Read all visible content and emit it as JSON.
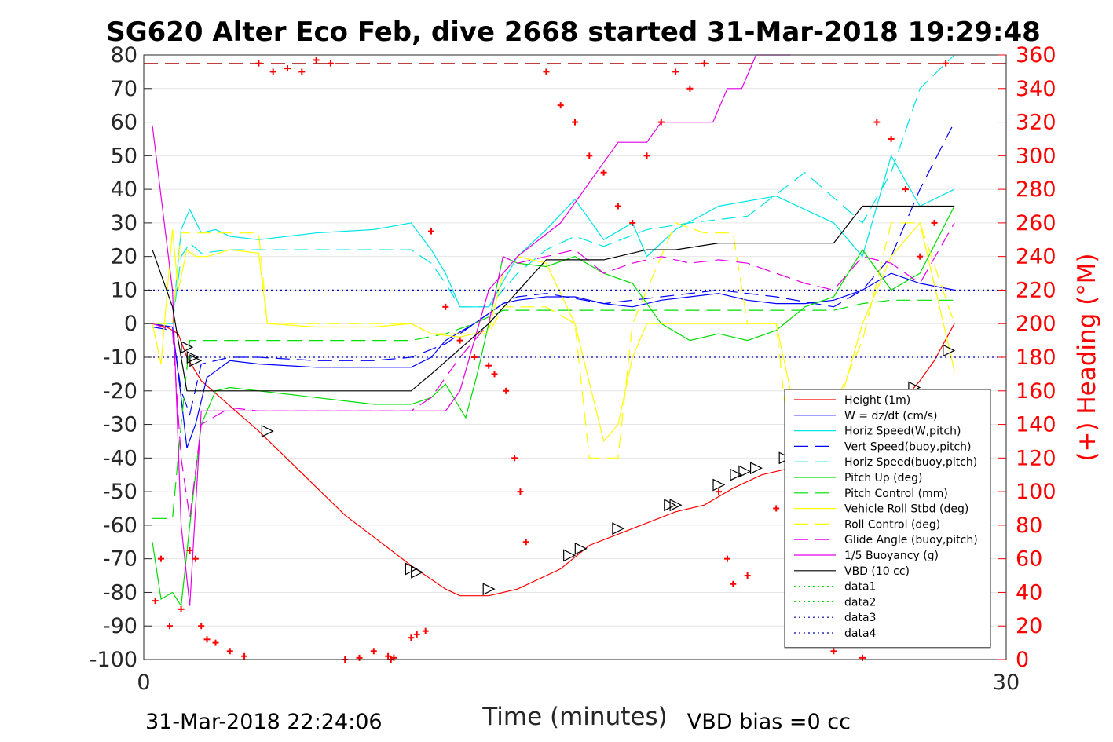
{
  "chart_data": {
    "type": "line",
    "title": "SG620 Alter Eco Feb, dive 2668 started 31-Mar-2018 19:29:48",
    "xlabel": "Time (minutes)",
    "ylabel": "",
    "ylabel_right": "(+) Heading (°M)",
    "xlim": [
      0,
      30
    ],
    "ylim": [
      -100,
      80
    ],
    "ylim_right": [
      0,
      360
    ],
    "xticks": [
      0,
      30
    ],
    "yticks": [
      80,
      70,
      60,
      50,
      40,
      30,
      20,
      10,
      0,
      -10,
      -20,
      -30,
      -40,
      -50,
      -60,
      -70,
      -80,
      -90,
      -100
    ],
    "yticks_right": [
      360,
      340,
      320,
      300,
      280,
      260,
      240,
      220,
      200,
      180,
      160,
      140,
      120,
      100,
      80,
      60,
      40,
      20,
      0
    ],
    "grid": true,
    "legend_position": "bottom-right",
    "footer_left": "31-Mar-2018 22:24:06",
    "footer_right": "VBD bias =0 cc",
    "series": [
      {
        "name": "Height (1m)",
        "color": "#ff0000",
        "style": "solid",
        "x": [
          0.3,
          0.8,
          1.2,
          1.5,
          2.0,
          4.0,
          7.0,
          9.3,
          10.5,
          11.0,
          12.0,
          13.0,
          14.5,
          15.5,
          17.0,
          18.5,
          19.5,
          20.5,
          21.5,
          22.5,
          23.5,
          24.5,
          25.5,
          26.5,
          27.0,
          27.5,
          28.2
        ],
        "y": [
          0,
          -1,
          -3,
          -10,
          -17,
          -32,
          -57,
          -72,
          -79,
          -81,
          -81,
          -79,
          -73,
          -66,
          -61,
          -56,
          -54,
          -49,
          -45,
          -43,
          -40,
          -36,
          -32,
          -22,
          -17,
          -11,
          0
        ]
      },
      {
        "name": "W = dz/dt (cm/s)",
        "color": "#0000ff",
        "style": "solid",
        "x": [
          0.3,
          1.0,
          1.3,
          1.5,
          1.8,
          2.2,
          3.0,
          4.0,
          6.0,
          8.0,
          9.3,
          10.0,
          10.5,
          11.5,
          12.0,
          12.5,
          13.0,
          14.0,
          15.0,
          16.0,
          17.0,
          18.0,
          19.0,
          20.0,
          21.0,
          22.0,
          23.0,
          24.0,
          25.0,
          26.0,
          27.0,
          28.2
        ],
        "y": [
          0,
          -1,
          -22,
          -37,
          -30,
          -16,
          -11,
          -12,
          -13,
          -13,
          -13,
          -10,
          -5,
          0,
          3,
          6,
          7,
          8,
          8,
          6,
          5,
          7,
          8,
          9,
          7,
          6,
          6,
          7,
          10,
          15,
          12,
          10
        ]
      },
      {
        "name": "Horiz Speed(W,pitch)",
        "color": "#00e5e5",
        "style": "solid",
        "x": [
          0.3,
          1.0,
          1.3,
          1.6,
          2.0,
          2.5,
          3.0,
          4.0,
          6.0,
          8.0,
          9.3,
          10.0,
          10.5,
          11.0,
          12.0,
          13.0,
          14.0,
          15.0,
          16.0,
          17.0,
          17.5,
          18.5,
          20.0,
          22.0,
          24.0,
          25.0,
          26.0,
          27.0,
          28.2
        ],
        "y": [
          0,
          0,
          28,
          34,
          27,
          28,
          26,
          25,
          27,
          28,
          30,
          22,
          15,
          5,
          5,
          20,
          28,
          37,
          25,
          30,
          20,
          28,
          35,
          38,
          30,
          20,
          50,
          35,
          40
        ]
      },
      {
        "name": "Vert Speed(buoy,pitch)",
        "color": "#0000ff",
        "style": "dashed",
        "x": [
          0.3,
          1.0,
          1.3,
          1.6,
          2.0,
          3.0,
          4.0,
          6.0,
          8.0,
          9.3,
          10.5,
          11.5,
          12.5,
          13.0,
          14.0,
          16.0,
          18.0,
          20.0,
          22.0,
          24.0,
          25.0,
          26.0,
          27.0,
          28.2
        ],
        "y": [
          -1,
          -2,
          -20,
          -27,
          -12,
          -10,
          -10,
          -11,
          -11,
          -10,
          -6,
          0,
          6,
          8,
          9,
          6,
          8,
          10,
          8,
          5,
          10,
          20,
          40,
          60
        ]
      },
      {
        "name": "Horiz Speed(buoy,pitch)",
        "color": "#00e5e5",
        "style": "dashed",
        "x": [
          0.3,
          1.0,
          1.3,
          1.6,
          2.0,
          3.0,
          4.0,
          6.0,
          8.0,
          9.3,
          10.0,
          10.5,
          11.0,
          12.0,
          13.0,
          14.0,
          15.0,
          16.0,
          17.5,
          19.0,
          21.0,
          23.0,
          25.0,
          26.0,
          27.0,
          28.2
        ],
        "y": [
          0,
          0,
          20,
          24,
          21,
          22,
          22,
          22,
          22,
          22,
          18,
          12,
          5,
          5,
          15,
          22,
          26,
          23,
          28,
          30,
          32,
          45,
          30,
          45,
          70,
          80
        ]
      },
      {
        "name": "Pitch Up (deg)",
        "color": "#00dd00",
        "style": "solid",
        "x": [
          0.3,
          0.6,
          1.0,
          1.3,
          1.6,
          2.0,
          2.5,
          3.0,
          4.0,
          6.0,
          8.0,
          9.3,
          10.0,
          10.5,
          11.2,
          11.6,
          12.0,
          12.5,
          13.0,
          14.0,
          15.0,
          16.0,
          17.0,
          18.0,
          19.0,
          20.0,
          21.0,
          22.0,
          23.0,
          24.0,
          25.0,
          26.0,
          27.0,
          28.2
        ],
        "y": [
          -65,
          -82,
          -80,
          -84,
          -60,
          -30,
          -20,
          -19,
          -20,
          -22,
          -24,
          -24,
          -22,
          -18,
          -28,
          -15,
          0,
          20,
          18,
          17,
          20,
          15,
          12,
          0,
          -5,
          -3,
          -5,
          -2,
          5,
          8,
          22,
          10,
          15,
          35
        ]
      },
      {
        "name": "Pitch Control (mm)",
        "color": "#00dd00",
        "style": "dashed",
        "x": [
          0.3,
          1.0,
          1.3,
          1.6,
          2.0,
          9.3,
          10.5,
          11.5,
          12.5,
          14.0,
          16.0,
          20.0,
          24.0,
          25.0,
          26.0,
          28.2
        ],
        "y": [
          -58,
          -58,
          -30,
          -5,
          -5,
          -5,
          -3,
          0,
          4,
          4,
          4,
          4,
          4,
          6,
          7,
          7
        ]
      },
      {
        "name": "Vehicle Roll Stbd (deg)",
        "color": "#ffff00",
        "style": "solid",
        "x": [
          0.3,
          0.6,
          1.0,
          1.2,
          1.5,
          1.8,
          2.2,
          3.0,
          4.0,
          4.3,
          6.0,
          8.0,
          9.3,
          10.0,
          11.0,
          12.0,
          12.5,
          13.0,
          14.0,
          15.0,
          16.0,
          16.5,
          17.0,
          17.5,
          18.0,
          20.0,
          22.0,
          22.5,
          23.0,
          24.0,
          25.0,
          26.0,
          27.0,
          28.2
        ],
        "y": [
          0,
          -12,
          28,
          10,
          22,
          20,
          20,
          22,
          21,
          0,
          -1,
          -1,
          0,
          -3,
          -4,
          -2,
          15,
          20,
          18,
          0,
          -35,
          -30,
          -10,
          0,
          0,
          0,
          0,
          -20,
          -40,
          -30,
          0,
          20,
          30,
          -14
        ]
      },
      {
        "name": "Roll Control (deg)",
        "color": "#ffff00",
        "style": "dashed",
        "x": [
          0.3,
          1.0,
          1.3,
          1.6,
          2.0,
          4.0,
          4.3,
          6.0,
          9.3,
          10.0,
          12.0,
          12.5,
          14.0,
          15.0,
          15.5,
          16.5,
          17.0,
          18.5,
          19.5,
          20.5,
          21.0,
          22.0,
          22.5,
          23.0,
          25.0,
          26.0,
          27.0,
          28.2
        ],
        "y": [
          0,
          0,
          27,
          27,
          27,
          27,
          0,
          0,
          0,
          -3,
          -3,
          5,
          5,
          0,
          -40,
          -40,
          0,
          30,
          27,
          27,
          0,
          0,
          -40,
          -45,
          -5,
          30,
          30,
          0
        ]
      },
      {
        "name": "Glide Angle (buoy,pitch)",
        "color": "#e600e6",
        "style": "dashed",
        "x": [
          0.3,
          1.0,
          1.3,
          1.6,
          2.0,
          3.0,
          4.0,
          6.0,
          8.0,
          9.3,
          10.0,
          11.0,
          12.0,
          12.5,
          13.0,
          14.0,
          15.0,
          16.0,
          17.0,
          18.0,
          19.0,
          20.0,
          21.0,
          22.0,
          23.0,
          24.0,
          25.0,
          26.0,
          27.0,
          28.2
        ],
        "y": [
          0,
          -2,
          -40,
          -58,
          -30,
          -25,
          -26,
          -26,
          -26,
          -26,
          -22,
          -10,
          0,
          20,
          18,
          20,
          22,
          15,
          18,
          20,
          18,
          19,
          18,
          15,
          12,
          10,
          20,
          18,
          12,
          30
        ]
      },
      {
        "name": "1/5 Buoyancy (g)",
        "color": "#e600e6",
        "style": "solid",
        "x": [
          0.3,
          1.0,
          1.3,
          1.6,
          2.0,
          4.0,
          6.0,
          8.0,
          9.3,
          10.5,
          11.0,
          12.0,
          13.0,
          14.5,
          16.5,
          17.5,
          18.0,
          18.5,
          19.8,
          20.3,
          20.8,
          21.3,
          22.5
        ],
        "y": [
          59,
          10,
          -60,
          -84,
          -26,
          -26,
          -26,
          -26,
          -26,
          -26,
          -20,
          10,
          20,
          30,
          54,
          54,
          60,
          60,
          60,
          70,
          70,
          80,
          80
        ]
      },
      {
        "name": "VBD (10 cc)",
        "color": "#000000",
        "style": "solid",
        "x": [
          0.3,
          1.0,
          1.5,
          2.0,
          4.0,
          6.0,
          8.0,
          9.3,
          10.0,
          12.0,
          14.0,
          16.0,
          17.5,
          18.5,
          20.0,
          21.0,
          23.0,
          24.0,
          25.0,
          26.0,
          27.0,
          28.2
        ],
        "y": [
          22,
          5,
          -20,
          -20,
          -20,
          -20,
          -20,
          -20,
          -15,
          0,
          19,
          19,
          22,
          22,
          24,
          24,
          24,
          24,
          35,
          35,
          35,
          35
        ]
      },
      {
        "name": "data1",
        "color": "#00dd00",
        "style": "dotted",
        "x": [],
        "y": []
      },
      {
        "name": "data2",
        "color": "#00dd00",
        "style": "dotted",
        "x": [],
        "y": []
      },
      {
        "name": "data3",
        "color": "#0000aa",
        "style": "dotted",
        "x": [
          0,
          30
        ],
        "y": [
          10,
          10
        ]
      },
      {
        "name": "data4",
        "color": "#0000aa",
        "style": "dotted",
        "x": [
          0,
          30
        ],
        "y": [
          -10,
          -10
        ]
      }
    ],
    "reference_lines": [
      {
        "axis": "y",
        "value": 77.5,
        "color": "#aa0000",
        "style": "dashed"
      }
    ],
    "heading_points": {
      "color": "#ff0000",
      "marker": "+",
      "x": [
        0.4,
        0.6,
        0.9,
        1.3,
        1.6,
        1.8,
        2.0,
        2.2,
        2.5,
        3.0,
        3.5,
        4.0,
        4.5,
        5.0,
        5.5,
        6.0,
        6.5,
        7.0,
        7.5,
        8.0,
        8.5,
        8.6,
        8.7,
        9.3,
        9.5,
        9.8,
        10.0,
        10.5,
        11.0,
        11.5,
        12.0,
        12.2,
        12.6,
        12.9,
        13.1,
        13.3,
        14.0,
        14.5,
        15.0,
        15.5,
        16.0,
        16.5,
        17.0,
        17.5,
        18.0,
        18.5,
        19.0,
        19.5,
        20.0,
        20.3,
        20.5,
        21.0,
        22.0,
        22.5,
        23.0,
        23.5,
        24.0,
        24.5,
        25.0,
        25.5,
        26.0,
        26.5,
        27.0,
        27.5,
        27.9
      ],
      "y": [
        35,
        60,
        20,
        30,
        65,
        60,
        20,
        12,
        10,
        5,
        2,
        355,
        350,
        352,
        350,
        357,
        355,
        0,
        1,
        5,
        2,
        0,
        1,
        13,
        15,
        17,
        255,
        210,
        190,
        180,
        175,
        170,
        160,
        120,
        100,
        70,
        350,
        330,
        320,
        300,
        290,
        270,
        260,
        300,
        320,
        350,
        340,
        355,
        100,
        60,
        45,
        50,
        90,
        60,
        40,
        20,
        5,
        15,
        1,
        320,
        310,
        280,
        240,
        260,
        355
      ]
    },
    "event_markers": {
      "color": "#000000",
      "marker": "triangle",
      "x": [
        1.5,
        1.7,
        1.8,
        4.3,
        9.3,
        9.5,
        12.0,
        14.8,
        15.2,
        16.5,
        18.3,
        18.5,
        20.0,
        20.6,
        20.9,
        21.3,
        22.3,
        22.6,
        23.0,
        26.8,
        28.0
      ],
      "y": [
        -7,
        -10,
        -11,
        -32,
        -73,
        -74,
        -79,
        -69,
        -67,
        -61,
        -54,
        -54,
        -48,
        -45,
        -44,
        -43,
        -40,
        -39,
        -37,
        -19,
        -8
      ]
    }
  }
}
